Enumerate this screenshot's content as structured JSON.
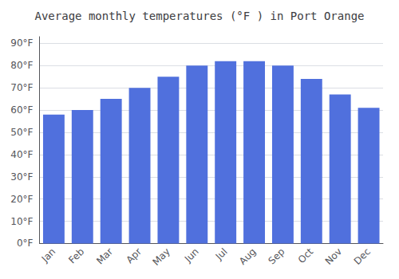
{
  "chart_data": {
    "type": "bar",
    "title": "Average monthly temperatures (°F ) in Port Orange",
    "categories": [
      "Jan",
      "Feb",
      "Mar",
      "Apr",
      "May",
      "Jun",
      "Jul",
      "Aug",
      "Sep",
      "Oct",
      "Nov",
      "Dec"
    ],
    "values": [
      58,
      60,
      65,
      70,
      75,
      80,
      82,
      82,
      80,
      74,
      67,
      61
    ],
    "ylim": [
      0,
      93
    ],
    "yticks": [
      {
        "value": 0,
        "label": "0°F"
      },
      {
        "value": 10,
        "label": "10°F"
      },
      {
        "value": 20,
        "label": "20°F"
      },
      {
        "value": 30,
        "label": "30°F"
      },
      {
        "value": 40,
        "label": "40°F"
      },
      {
        "value": 50,
        "label": "50°F"
      },
      {
        "value": 60,
        "label": "60°F"
      },
      {
        "value": 70,
        "label": "70°F"
      },
      {
        "value": 80,
        "label": "80°F"
      },
      {
        "value": 90,
        "label": "90°F"
      }
    ],
    "grid": true
  }
}
